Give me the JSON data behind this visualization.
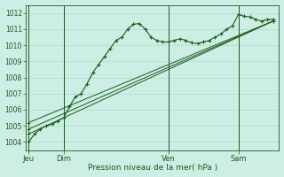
{
  "background_color": "#cceee4",
  "grid_color": "#aaddcc",
  "line_color": "#1a5c1a",
  "xlabel": "Pression niveau de la mer( hPa )",
  "ylim": [
    1003.5,
    1012.5
  ],
  "yticks": [
    1004,
    1005,
    1006,
    1007,
    1008,
    1009,
    1010,
    1011,
    1012
  ],
  "xlim": [
    -2,
    172
  ],
  "x_tick_labels": [
    "Jeu",
    "Dim",
    "Ven",
    "Sam"
  ],
  "x_tick_positions": [
    0,
    24,
    96,
    144
  ],
  "vline_positions": [
    0,
    24,
    96,
    144
  ],
  "line1_x": [
    0,
    4,
    8,
    12,
    16,
    20,
    24,
    28,
    32,
    36,
    40,
    44,
    48,
    52,
    56,
    60,
    64,
    68,
    72,
    76,
    80,
    84,
    88,
    92,
    96,
    100,
    104,
    108,
    112,
    116,
    120,
    124,
    128,
    132,
    136,
    140,
    144,
    148,
    152,
    156,
    160,
    164,
    168
  ],
  "line1_y": [
    1004.0,
    1004.5,
    1004.8,
    1005.0,
    1005.1,
    1005.3,
    1005.5,
    1006.2,
    1006.8,
    1007.0,
    1007.6,
    1008.3,
    1008.8,
    1009.3,
    1009.8,
    1010.3,
    1010.5,
    1011.0,
    1011.3,
    1011.35,
    1011.0,
    1010.5,
    1010.3,
    1010.2,
    1010.2,
    1010.3,
    1010.4,
    1010.3,
    1010.15,
    1010.1,
    1010.2,
    1010.3,
    1010.5,
    1010.7,
    1011.0,
    1011.2,
    1011.9,
    1011.8,
    1011.75,
    1011.6,
    1011.5,
    1011.6,
    1011.6
  ],
  "line2_x": [
    0,
    168
  ],
  "line2_y": [
    1004.8,
    1011.5
  ],
  "line3_x": [
    0,
    168
  ],
  "line3_y": [
    1005.2,
    1011.5
  ],
  "line4_x": [
    0,
    168
  ],
  "line4_y": [
    1004.5,
    1011.5
  ]
}
